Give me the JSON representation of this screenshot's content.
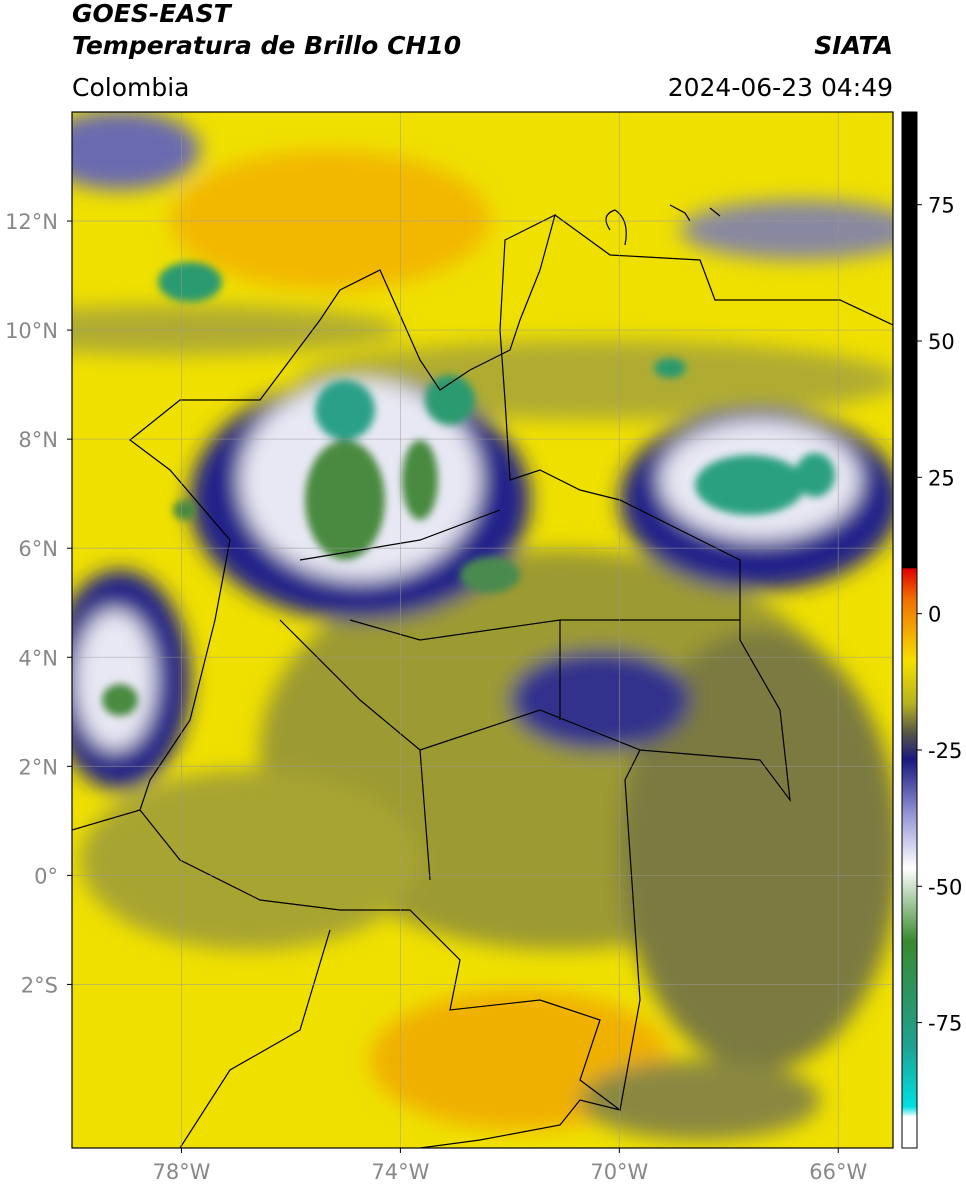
{
  "header": {
    "satellite": "GOES-EAST",
    "product": "Temperatura de Brillo CH10",
    "source": "SIATA",
    "region": "Colombia",
    "datetime": "2024-06-23 04:49"
  },
  "map": {
    "xlim": [
      -80,
      -65
    ],
    "ylim": [
      -5,
      14
    ],
    "xticks": [
      {
        "value": -78,
        "label": "78°W"
      },
      {
        "value": -74,
        "label": "74°W"
      },
      {
        "value": -70,
        "label": "70°W"
      },
      {
        "value": -66,
        "label": "66°W"
      }
    ],
    "yticks": [
      {
        "value": 12,
        "label": "12°N"
      },
      {
        "value": 10,
        "label": "10°N"
      },
      {
        "value": 8,
        "label": "8°N"
      },
      {
        "value": 6,
        "label": "6°N"
      },
      {
        "value": 4,
        "label": "4°N"
      },
      {
        "value": 2,
        "label": "2°N"
      },
      {
        "value": 0,
        "label": "0°"
      },
      {
        "value": -2,
        "label": "2°S"
      }
    ],
    "grid": true
  },
  "colorbar": {
    "lim": [
      -98,
      92
    ],
    "ticks": [
      75,
      50,
      25,
      0,
      -25,
      -50,
      -75
    ]
  }
}
